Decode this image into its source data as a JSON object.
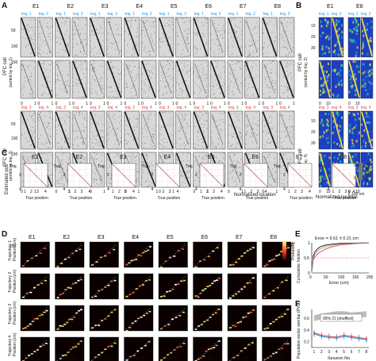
{
  "panel_labels": [
    "A",
    "B",
    "C",
    "D",
    "E",
    "F"
  ],
  "sessions": [
    "E1",
    "E2",
    "E3",
    "E4",
    "E5",
    "E6",
    "E7",
    "E8"
  ],
  "panel_a": {
    "traj_labels_top": [
      "traj. 1",
      "traj. 2"
    ],
    "traj_labels_bottom": [
      "traj. 3",
      "traj. 4"
    ],
    "ylabel_top": "PFC cell",
    "ylabel_top_sub": "(sorted by traj. 1)",
    "ylabel_bottom": "PFC cell",
    "ylabel_bottom_sub": "(sorted by traj. 3)",
    "yticks": [
      "50",
      "100",
      "150"
    ],
    "xticks": [
      "0",
      "1"
    ],
    "xlabel": "Normalized location",
    "colors": {
      "traj_label": "#2a8fd6",
      "traj_label_bottom": "#e0413a"
    }
  },
  "panel_b": {
    "sessions": [
      "E1",
      "E8"
    ],
    "ylabel_top": "PFC cell",
    "ylabel_top_sub": "(sorted by traj. 2)",
    "ylabel_bottom": "PFC cell",
    "ylabel_bottom_sub": "(sorted by traj. 4)",
    "yticks": [
      "10",
      "20",
      "30"
    ],
    "xticks": [
      "0",
      "10"
    ],
    "xlabel": "Normalized location"
  },
  "panel_c": {
    "ylabel": "Estimated pos",
    "xlabel": "True position",
    "traj_label": "Traj.",
    "ticks": [
      "1",
      "2",
      "3",
      "4"
    ],
    "colorbar_label": "Probability",
    "colorbar_ticks": [
      "0",
      "0.4"
    ],
    "scale_label": "100 cm"
  },
  "panel_d": {
    "row_labels": [
      [
        "Trajectory 1",
        "Position (cm)"
      ],
      [
        "Trajectory 2",
        "Position (cm)"
      ],
      [
        "Trajectory 3",
        "Position (cm)"
      ],
      [
        "Trajectory 4",
        "Position (cm)"
      ]
    ],
    "ytick": "150",
    "xticks": [
      "0",
      "5"
    ],
    "xlabel": "Time (s)",
    "colorbar_label": "Probability",
    "colorbar_ticks": [
      "0.2",
      "0"
    ]
  },
  "panel_e": {
    "title": "Error = 9.61 ± 0.21 cm",
    "ylabel": "Cumulative fraction",
    "xlabel": "Error (cm)",
    "yticks": [
      "0",
      "0.5",
      "1"
    ],
    "xticks": [
      "0",
      "50",
      "100",
      "150",
      "200"
    ]
  },
  "panel_f": {
    "ylabel": "Population vector overlap (PVO)",
    "xlabel": "Session No",
    "legend": "95% CI (shuffled)",
    "yticks": [
      "0.2",
      "0.4",
      "0.6"
    ],
    "xticks": [
      "1",
      "2",
      "3",
      "4",
      "5",
      "6",
      "7",
      "8"
    ]
  },
  "chart_data": [
    {
      "type": "line",
      "panel": "E",
      "title": "Error = 9.61 ± 0.21 cm",
      "xlabel": "Error (cm)",
      "ylabel": "Cumulative fraction",
      "xlim": [
        0,
        200
      ],
      "ylim": [
        0,
        1
      ],
      "x": [
        0,
        5,
        10,
        20,
        30,
        50,
        75,
        100,
        150,
        200
      ],
      "series": [
        {
          "values": [
            0,
            0.55,
            0.68,
            0.8,
            0.87,
            0.93,
            0.96,
            0.98,
            0.99,
            1.0
          ],
          "color": "#111111"
        },
        {
          "values": [
            0,
            0.42,
            0.52,
            0.62,
            0.7,
            0.8,
            0.88,
            0.93,
            0.97,
            0.99
          ],
          "color": "#e0413a"
        },
        {
          "values": [
            0,
            0.48,
            0.6,
            0.72,
            0.8,
            0.88,
            0.93,
            0.96,
            0.98,
            1.0
          ],
          "color": "#999999"
        }
      ],
      "reference_line": 0.5
    },
    {
      "type": "line",
      "panel": "F",
      "xlabel": "Session No",
      "ylabel": "Population vector overlap (PVO)",
      "xlim": [
        1,
        8
      ],
      "ylim": [
        0.1,
        0.75
      ],
      "x": [
        1,
        2,
        3,
        4,
        5,
        6,
        7,
        8
      ],
      "series": [
        {
          "values": [
            0.35,
            0.31,
            0.29,
            0.28,
            0.31,
            0.29,
            0.27,
            0.25
          ],
          "color": "#e0413a",
          "error": 0.05
        },
        {
          "values": [
            0.33,
            0.29,
            0.27,
            0.26,
            0.29,
            0.27,
            0.25,
            0.23
          ],
          "color": "#2a8fd6",
          "error": 0.05
        }
      ],
      "ci_band": {
        "label": "95% CI (shuffled)",
        "low": [
          0.55,
          0.58,
          0.6,
          0.62,
          0.62,
          0.6,
          0.61,
          0.62
        ],
        "high": [
          0.65,
          0.68,
          0.7,
          0.72,
          0.72,
          0.7,
          0.71,
          0.72
        ]
      }
    }
  ]
}
